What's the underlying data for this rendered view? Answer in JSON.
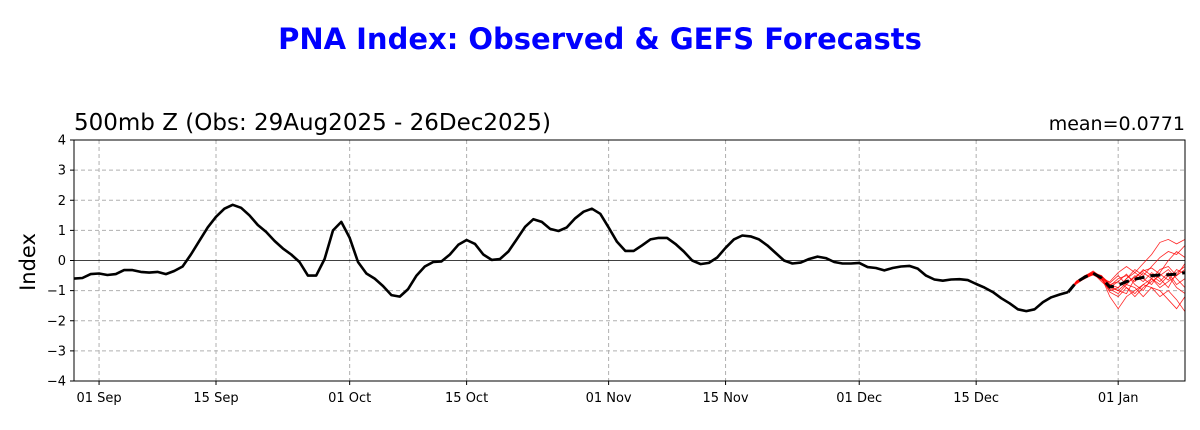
{
  "chart_data": {
    "type": "line",
    "title": "PNA Index: Observed & GEFS Forecasts",
    "subtitle": "500mb Z (Obs: 29Aug2025 - 26Dec2025)",
    "annotation": "mean=0.0771",
    "ylabel": "Index",
    "xlabel": "",
    "ylim": [
      -4,
      4
    ],
    "yticks": [
      "4",
      "3",
      "2",
      "1",
      "0",
      "−1",
      "−2",
      "−3",
      "−4"
    ],
    "xlim_days_from_sep1": [
      -3,
      130
    ],
    "xticks": [
      {
        "label": "01 Sep",
        "day": 0
      },
      {
        "label": "15 Sep",
        "day": 14
      },
      {
        "label": "01 Oct",
        "day": 30
      },
      {
        "label": "15 Oct",
        "day": 44
      },
      {
        "label": "01 Nov",
        "day": 61
      },
      {
        "label": "15 Nov",
        "day": 75
      },
      {
        "label": "01 Dec",
        "day": 91
      },
      {
        "label": "15 Dec",
        "day": 105
      },
      {
        "label": "01 Jan",
        "day": 122
      }
    ],
    "grid": true,
    "colors": {
      "observed": "#000000",
      "members": "#ff0000",
      "ensemble_mean": "#000000",
      "title": "#0000ff"
    },
    "observed": {
      "name": "Observed",
      "start_day": -3,
      "values": [
        -0.6,
        -0.58,
        -0.45,
        -0.43,
        -0.48,
        -0.45,
        -0.32,
        -0.32,
        -0.38,
        -0.4,
        -0.38,
        -0.45,
        -0.35,
        -0.2,
        0.2,
        0.65,
        1.1,
        1.45,
        1.72,
        1.85,
        1.75,
        1.5,
        1.18,
        0.95,
        0.65,
        0.4,
        0.2,
        -0.05,
        -0.5,
        -0.5,
        0.05,
        1.0,
        1.28,
        0.75,
        -0.05,
        -0.43,
        -0.6,
        -0.85,
        -1.15,
        -1.2,
        -0.95,
        -0.5,
        -0.2,
        -0.05,
        -0.03,
        0.2,
        0.52,
        0.68,
        0.55,
        0.2,
        0.02,
        0.05,
        0.3,
        0.7,
        1.12,
        1.37,
        1.28,
        1.05,
        0.98,
        1.1,
        1.4,
        1.62,
        1.72,
        1.55,
        1.1,
        0.62,
        0.32,
        0.32,
        0.5,
        0.7,
        0.75,
        0.75,
        0.55,
        0.3,
        0.0,
        -0.12,
        -0.08,
        0.1,
        0.42,
        0.7,
        0.83,
        0.8,
        0.7,
        0.5,
        0.25,
        0.0,
        -0.1,
        -0.07,
        0.05,
        0.13,
        0.08,
        -0.05,
        -0.1,
        -0.1,
        -0.08,
        -0.22,
        -0.25,
        -0.33,
        -0.25,
        -0.2,
        -0.18,
        -0.27,
        -0.5,
        -0.63,
        -0.67,
        -0.63,
        -0.62,
        -0.65,
        -0.78,
        -0.9,
        -1.05,
        -1.25,
        -1.42,
        -1.62,
        -1.68,
        -1.62,
        -1.38,
        -1.22,
        -1.13,
        -1.05
      ]
    },
    "forecast": {
      "start_day": 116,
      "ensemble_mean": [
        -1.05,
        -0.72,
        -0.55,
        -0.42,
        -0.58,
        -0.88,
        -0.82,
        -0.7,
        -0.62,
        -0.56,
        -0.5,
        -0.48,
        -0.47,
        -0.45,
        -0.4
      ],
      "members": [
        [
          -1.05,
          -0.7,
          -0.5,
          -0.38,
          -0.6,
          -1.0,
          -0.9,
          -0.6,
          -0.3,
          -0.5,
          -0.2,
          0.1,
          0.3,
          0.2,
          0.5
        ],
        [
          -1.05,
          -0.75,
          -0.6,
          -0.45,
          -0.5,
          -0.8,
          -0.7,
          -0.9,
          -1.1,
          -0.8,
          -0.9,
          -1.2,
          -1.0,
          -1.3,
          -1.7
        ],
        [
          -1.05,
          -0.68,
          -0.52,
          -0.35,
          -0.55,
          -1.2,
          -1.6,
          -1.2,
          -1.0,
          -0.8,
          -0.6,
          -0.9,
          -0.7,
          -0.5,
          -0.3
        ],
        [
          -1.05,
          -0.78,
          -0.58,
          -0.48,
          -0.62,
          -0.7,
          -0.4,
          -0.2,
          -0.4,
          -0.1,
          0.2,
          0.6,
          0.7,
          0.55,
          0.7
        ],
        [
          -1.05,
          -0.72,
          -0.5,
          -0.42,
          -0.7,
          -0.95,
          -1.1,
          -0.8,
          -0.9,
          -1.2,
          -0.9,
          -1.0,
          -1.3,
          -1.6,
          -1.2
        ],
        [
          -1.05,
          -0.7,
          -0.55,
          -0.4,
          -0.5,
          -0.85,
          -0.6,
          -0.5,
          -0.7,
          -0.4,
          -0.6,
          -0.3,
          -0.2,
          -0.5,
          -0.1
        ],
        [
          -1.05,
          -0.74,
          -0.6,
          -0.45,
          -0.65,
          -0.9,
          -1.0,
          -1.1,
          -0.6,
          -0.3,
          -0.5,
          -0.7,
          -0.4,
          -0.8,
          -0.6
        ],
        [
          -1.05,
          -0.7,
          -0.52,
          -0.4,
          -0.52,
          -0.75,
          -0.5,
          -0.8,
          -0.5,
          -0.7,
          -0.4,
          -0.6,
          -0.9,
          -0.4,
          -0.2
        ],
        [
          -1.05,
          -0.72,
          -0.56,
          -0.43,
          -0.6,
          -1.05,
          -1.2,
          -0.9,
          -1.2,
          -0.9,
          -0.7,
          -0.5,
          -0.3,
          -0.6,
          -0.9
        ],
        [
          -1.05,
          -0.7,
          -0.55,
          -0.4,
          -0.55,
          -0.8,
          -0.9,
          -0.6,
          -0.4,
          -0.6,
          -0.8,
          -0.4,
          0.0,
          0.3,
          0.1
        ],
        [
          -1.05,
          -0.73,
          -0.57,
          -0.44,
          -0.6,
          -0.9,
          -0.7,
          -0.45,
          -0.8,
          -1.0,
          -0.6,
          -0.8,
          -0.5,
          -0.9,
          -1.1
        ],
        [
          -1.05,
          -0.71,
          -0.53,
          -0.41,
          -0.57,
          -0.85,
          -1.0,
          -0.75,
          -0.55,
          -0.35,
          -0.25,
          -0.45,
          -0.65,
          -0.3,
          -0.45
        ]
      ]
    }
  }
}
